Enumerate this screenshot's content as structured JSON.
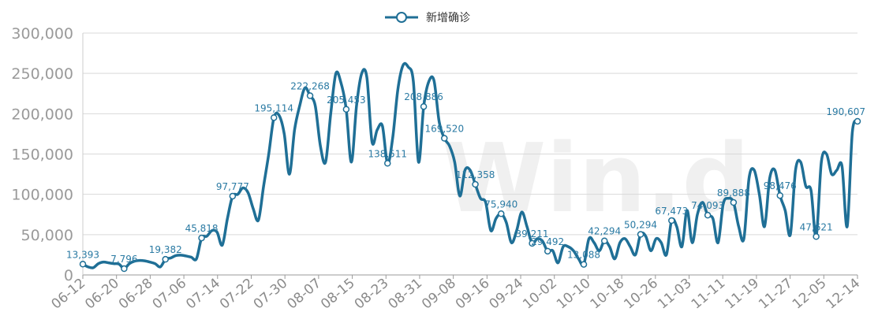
{
  "chart_data": {
    "type": "line",
    "legend": {
      "label": "新增确诊",
      "position": "top-center"
    },
    "watermark": "Win.d",
    "color": "#1f6f96",
    "grid": true,
    "ylim": [
      0,
      300000
    ],
    "yticks": [
      "0",
      "50,000",
      "100,000",
      "150,000",
      "200,000",
      "250,000",
      "300,000"
    ],
    "xticks": [
      "06-12",
      "06-20",
      "06-28",
      "07-06",
      "07-14",
      "07-22",
      "07-30",
      "08-07",
      "08-15",
      "08-23",
      "08-31",
      "09-08",
      "09-16",
      "09-24",
      "10-02",
      "10-10",
      "10-18",
      "10-26",
      "11-03",
      "11-11",
      "11-19",
      "11-27",
      "12-05",
      "12-14"
    ],
    "series": [
      {
        "values": [
          13393,
          10000,
          9000,
          14000,
          16000,
          15000,
          14000,
          13500,
          7796,
          14000,
          17000,
          18000,
          17500,
          16000,
          14000,
          10000,
          19382,
          21000,
          24000,
          24500,
          23500,
          22000,
          20000,
          45818,
          48000,
          55000,
          53000,
          37000,
          70000,
          97777,
          100000,
          108000,
          102000,
          82000,
          68000,
          110000,
          150000,
          195114,
          198000,
          175000,
          125000,
          180000,
          210000,
          232000,
          222268,
          210000,
          160000,
          140000,
          200000,
          250000,
          238000,
          205453,
          140000,
          210000,
          250000,
          245000,
          165000,
          180000,
          185000,
          138511,
          170000,
          230000,
          260000,
          258000,
          240000,
          140000,
          208886,
          240000,
          241000,
          190000,
          169520,
          160000,
          140000,
          98000,
          130000,
          130000,
          112358,
          95000,
          90000,
          55000,
          70000,
          75940,
          65000,
          40000,
          55000,
          78000,
          60000,
          39211,
          45000,
          42000,
          29492,
          30000,
          15000,
          35000,
          35000,
          30000,
          20000,
          13088,
          45000,
          40000,
          30000,
          42294,
          35000,
          20000,
          40000,
          45000,
          35000,
          25000,
          50294,
          48000,
          30000,
          45000,
          40000,
          25000,
          67473,
          60000,
          35000,
          80000,
          40000,
          75000,
          90000,
          74093,
          70000,
          40000,
          88000,
          95000,
          89888,
          60000,
          45000,
          120000,
          130000,
          100000,
          60000,
          120000,
          130000,
          98476,
          80000,
          50000,
          130000,
          140000,
          110000,
          105000,
          47621,
          140000,
          150000,
          125000,
          130000,
          135000,
          60000,
          177000,
          190607
        ]
      }
    ],
    "point_labels": [
      {
        "i": 0,
        "text": "13,393"
      },
      {
        "i": 8,
        "text": "7,796"
      },
      {
        "i": 16,
        "text": "19,382"
      },
      {
        "i": 23,
        "text": "45,818"
      },
      {
        "i": 29,
        "text": "97,777"
      },
      {
        "i": 37,
        "text": "195,114"
      },
      {
        "i": 44,
        "text": "222,268"
      },
      {
        "i": 51,
        "text": "205,453"
      },
      {
        "i": 59,
        "text": "138,511"
      },
      {
        "i": 66,
        "text": "208,886"
      },
      {
        "i": 70,
        "text": "169,520"
      },
      {
        "i": 76,
        "text": "112,358"
      },
      {
        "i": 81,
        "text": "75,940"
      },
      {
        "i": 87,
        "text": "39,211"
      },
      {
        "i": 90,
        "text": "29,492"
      },
      {
        "i": 97,
        "text": "13,088"
      },
      {
        "i": 101,
        "text": "42,294"
      },
      {
        "i": 108,
        "text": "50,294"
      },
      {
        "i": 114,
        "text": "67,473"
      },
      {
        "i": 121,
        "text": "74,093"
      },
      {
        "i": 126,
        "text": "89,888"
      },
      {
        "i": 135,
        "text": "98,476"
      },
      {
        "i": 142,
        "text": "47,621"
      },
      {
        "i": 150,
        "text": "190,607"
      }
    ]
  }
}
